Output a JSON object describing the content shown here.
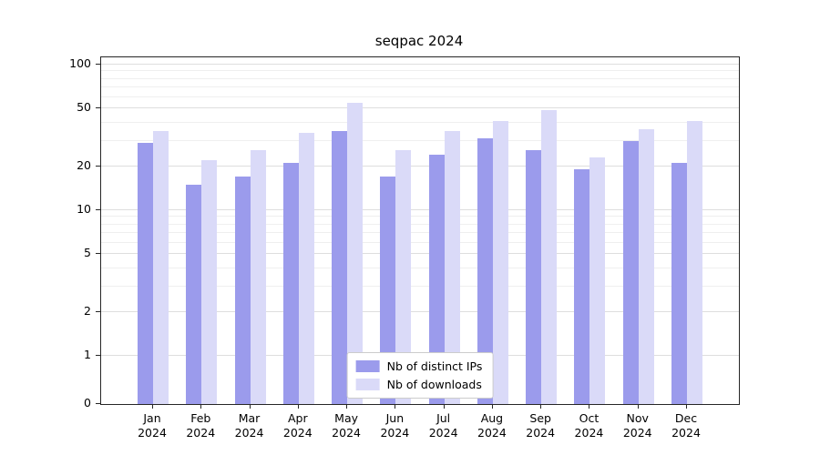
{
  "chart_data": {
    "type": "bar",
    "title": "seqpac 2024",
    "categories": [
      "Jan",
      "Feb",
      "Mar",
      "Apr",
      "May",
      "Jun",
      "Jul",
      "Aug",
      "Sep",
      "Oct",
      "Nov",
      "Dec"
    ],
    "x_year": "2024",
    "series": [
      {
        "name": "Nb of distinct IPs",
        "color": "#9b9bec",
        "values": [
          29,
          15,
          17,
          21,
          35,
          17,
          24,
          31,
          26,
          19,
          30,
          21
        ]
      },
      {
        "name": "Nb of downloads",
        "color": "#dadaf8",
        "values": [
          35,
          22,
          26,
          34,
          55,
          26,
          35,
          41,
          49,
          23,
          36,
          41
        ]
      }
    ],
    "yticks": [
      0,
      1,
      2,
      5,
      10,
      20,
      50,
      100
    ],
    "minor_gridlines": [
      3,
      4,
      6,
      7,
      8,
      9,
      30,
      40,
      60,
      70,
      80,
      90
    ],
    "scale": "symlog",
    "ylim": [
      0,
      100
    ],
    "grid": true,
    "legend_position": "inside-bottom-center"
  }
}
